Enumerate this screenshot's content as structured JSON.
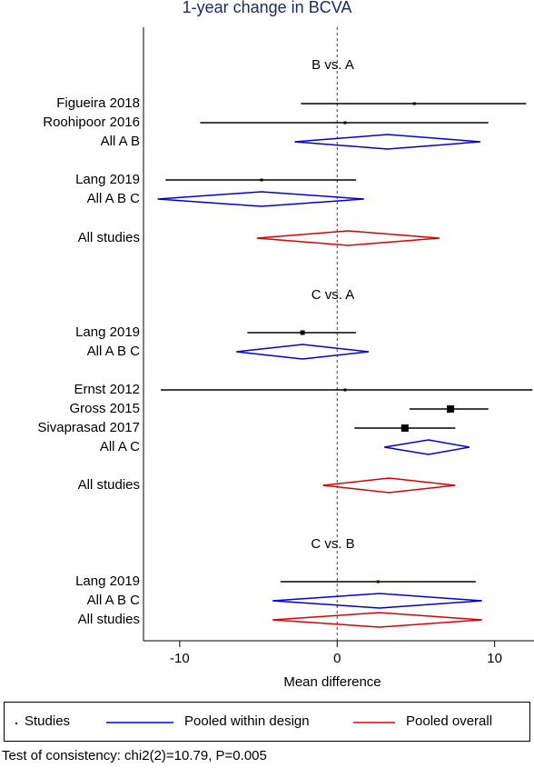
{
  "chart_data": {
    "type": "forest",
    "title": "1-year change in BCVA",
    "xlabel": "Mean difference",
    "xlim": [
      -12.3,
      12.5
    ],
    "xticks": [
      -10,
      0,
      10
    ],
    "xtick_labels": [
      "-10",
      "0",
      "10"
    ],
    "reference_line": 0,
    "sections": [
      {
        "label": "B vs. A",
        "rows": [
          {
            "label": "Figueira 2018",
            "kind": "study",
            "est": 4.9,
            "lo": -2.3,
            "hi": 12.0
          },
          {
            "label": "Roohipoor 2016",
            "kind": "study",
            "est": 0.5,
            "lo": -8.7,
            "hi": 9.6
          },
          {
            "label": "All A B",
            "kind": "pooled_design",
            "est": 3.2,
            "lo": -2.7,
            "hi": 9.1
          },
          {
            "label": "Lang 2019",
            "kind": "study",
            "est": -4.8,
            "lo": -10.9,
            "hi": 1.2
          },
          {
            "label": "All A B C",
            "kind": "pooled_design",
            "est": -4.8,
            "lo": -11.4,
            "hi": 1.7
          },
          {
            "label": "All studies",
            "kind": "pooled_overall",
            "est": 0.7,
            "lo": -5.1,
            "hi": 6.5
          }
        ]
      },
      {
        "label": "C vs. A",
        "rows": [
          {
            "label": "Lang 2019",
            "kind": "study",
            "est": -2.2,
            "lo": -5.7,
            "hi": 1.2
          },
          {
            "label": "All A B C",
            "kind": "pooled_design",
            "est": -2.2,
            "lo": -6.4,
            "hi": 2.0
          },
          {
            "label": "Ernst 2012",
            "kind": "study",
            "est": 0.5,
            "lo": -11.2,
            "hi": 12.4
          },
          {
            "label": "Gross 2015",
            "kind": "study",
            "est": 7.2,
            "lo": 4.6,
            "hi": 9.6
          },
          {
            "label": "Sivaprasad 2017",
            "kind": "study",
            "est": 4.3,
            "lo": 1.1,
            "hi": 7.5
          },
          {
            "label": "All A C",
            "kind": "pooled_design",
            "est": 5.8,
            "lo": 3.0,
            "hi": 8.4
          },
          {
            "label": "All studies",
            "kind": "pooled_overall",
            "est": 3.3,
            "lo": -0.9,
            "hi": 7.5
          }
        ]
      },
      {
        "label": "C vs. B",
        "rows": [
          {
            "label": "Lang 2019",
            "kind": "study",
            "est": 2.6,
            "lo": -3.6,
            "hi": 8.8
          },
          {
            "label": "All A B C",
            "kind": "pooled_design",
            "est": 2.7,
            "lo": -4.1,
            "hi": 9.2
          },
          {
            "label": "All studies",
            "kind": "pooled_overall",
            "est": 2.7,
            "lo": -4.1,
            "hi": 9.2
          }
        ]
      }
    ],
    "colors": {
      "study": "#000000",
      "pooled_design": "#0000dd",
      "pooled_overall": "#dd0000",
      "reference_line": "#7a1f4f",
      "title": "#1a2a6c"
    }
  },
  "legend": {
    "studies": "Studies",
    "pooled_design": "Pooled within design",
    "pooled_overall": "Pooled overall"
  },
  "footnote": "Test of consistency: chi2(2)=10.79, P=0.005"
}
